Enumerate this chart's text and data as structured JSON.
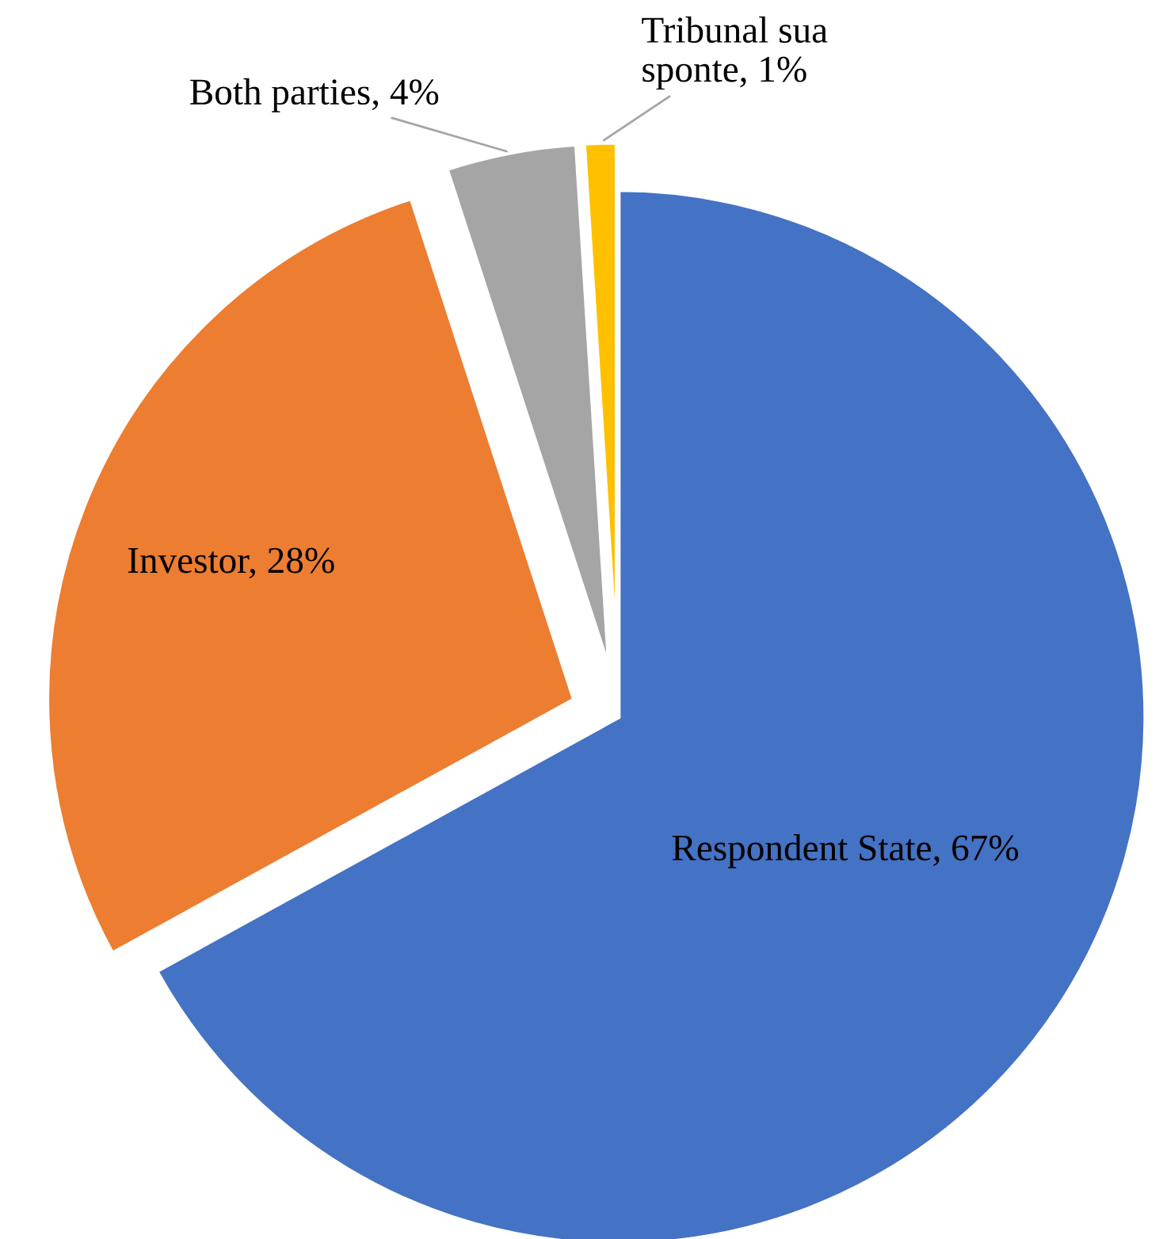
{
  "chart_data": {
    "type": "pie",
    "categories": [
      "Respondent State",
      "Investor",
      "Both parties",
      "Tribunal sua\nsponte"
    ],
    "values": [
      67,
      28,
      4,
      1
    ],
    "value_labels": [
      "67%",
      "28%",
      "4%",
      "1%"
    ],
    "colors": [
      "#4472c4",
      "#ed7d31",
      "#a5a5a5",
      "#ffc000"
    ],
    "legend": false
  }
}
